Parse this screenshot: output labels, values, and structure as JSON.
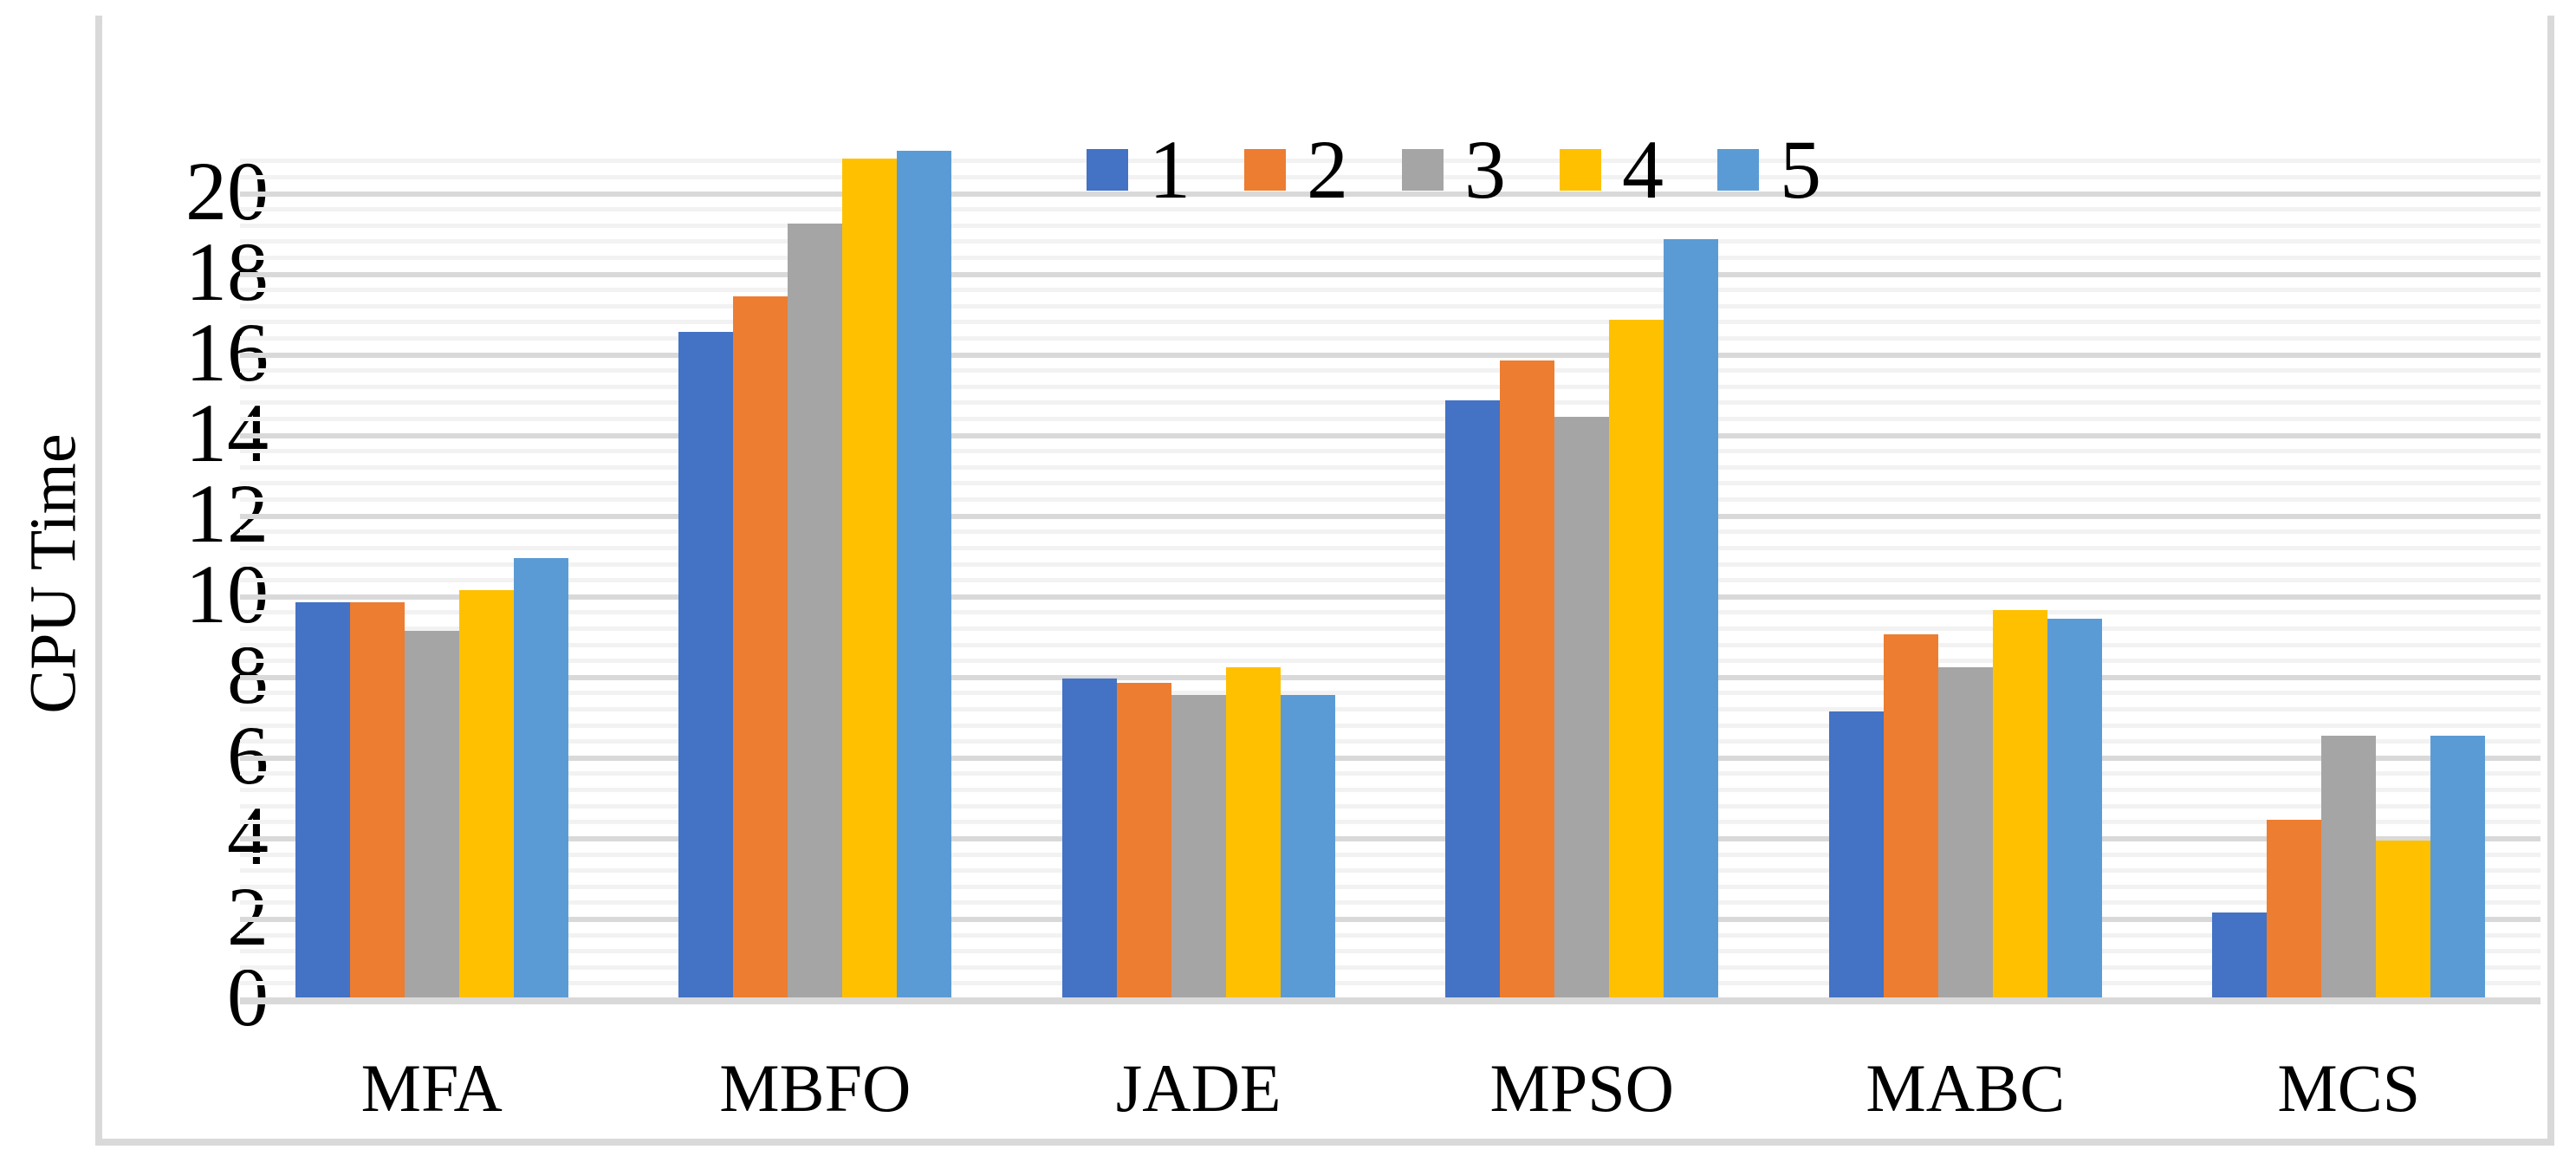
{
  "y_axis": {
    "label": "CPU Time"
  },
  "colors": {
    "series": [
      "#4472C4",
      "#ED7D31",
      "#A5A5A5",
      "#FFC000",
      "#5B9BD5"
    ],
    "grid_major": "#D9D9D9",
    "grid_minor": "#F2F2F2",
    "baseline": "#D9D9D9",
    "border": "#D9D9D9",
    "text": "#000000",
    "background": "#FFFFFF"
  },
  "legend": {
    "labels": [
      "1",
      "2",
      "3",
      "4",
      "5"
    ]
  },
  "chart_data": {
    "type": "bar",
    "title": "",
    "categories": [
      "MFA",
      "MBFO",
      "JADE",
      "MPSO",
      "MABC",
      "MCS"
    ],
    "series": [
      {
        "name": "1",
        "color": "#4472C4",
        "values": [
          9.8,
          16.5,
          7.9,
          14.8,
          7.1,
          2.1
        ]
      },
      {
        "name": "2",
        "color": "#ED7D31",
        "values": [
          9.8,
          17.4,
          7.8,
          15.8,
          9.0,
          4.4
        ]
      },
      {
        "name": "3",
        "color": "#A5A5A5",
        "values": [
          9.1,
          19.2,
          7.5,
          14.4,
          8.2,
          6.5
        ]
      },
      {
        "name": "4",
        "color": "#FFC000",
        "values": [
          10.1,
          20.8,
          8.2,
          16.8,
          9.6,
          3.9
        ]
      },
      {
        "name": "5",
        "color": "#5B9BD5",
        "values": [
          10.9,
          21.0,
          7.5,
          18.8,
          9.4,
          6.5
        ]
      }
    ],
    "xlabel": "",
    "ylabel": "CPU Time",
    "ylim": [
      0,
      21
    ],
    "yticks": [
      0,
      2,
      4,
      6,
      8,
      10,
      12,
      14,
      16,
      18,
      20
    ],
    "y_major_step": 2,
    "y_minor_step": 0.4,
    "grid": "major+minor",
    "legend_position": "top-center"
  }
}
